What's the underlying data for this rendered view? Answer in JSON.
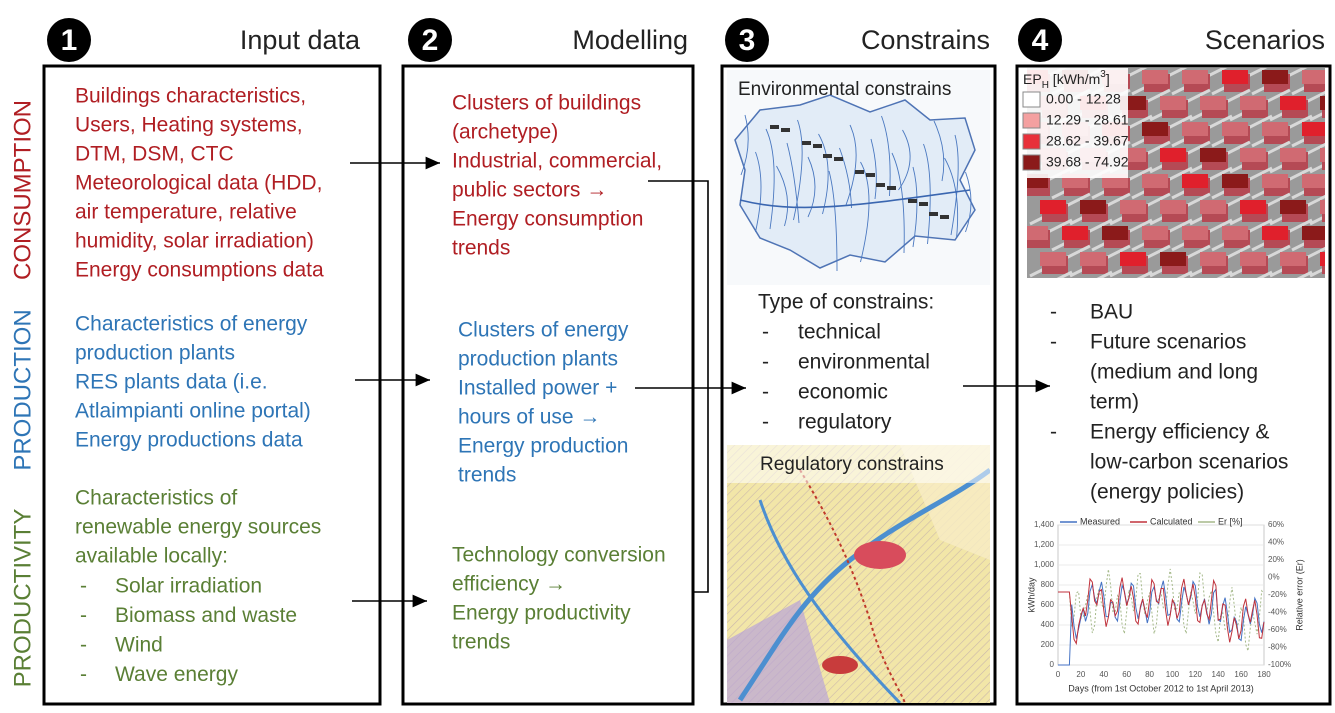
{
  "row_labels": [
    "CONSUMPTION",
    "PRODUCTION",
    "PRODUCTIVITY"
  ],
  "columns": [
    {
      "number": "1",
      "title": "Input data",
      "consumption": [
        "Buildings characteristics,",
        "Users, Heating systems,",
        "DTM, DSM, CTC",
        "Meteorological data (HDD,",
        "air temperature, relative",
        "humidity, solar irradiation)",
        "Energy consumptions data"
      ],
      "production": [
        "Characteristics of energy",
        "production plants",
        "RES plants data (i.e.",
        "Atlaimpianti online portal)",
        "Energy productions data"
      ],
      "productivity": [
        "Characteristics of",
        "renewable energy sources",
        "available locally:"
      ],
      "bullet": "-",
      "sources": [
        "Solar irradiation",
        "Biomass and waste",
        "Wind",
        "Wave energy"
      ]
    },
    {
      "number": "2",
      "title": "Modelling",
      "consumption": [
        "Clusters of buildings",
        "(archetype)",
        "Industrial, commercial,",
        "public sectors →",
        "Energy consumption",
        "trends"
      ],
      "production": [
        "Clusters of energy",
        "production plants",
        "Installed power +",
        "hours of use →",
        "Energy production",
        "trends"
      ],
      "productivity": [
        "Technology conversion",
        "efficiency →",
        "Energy productivity",
        "trends"
      ]
    },
    {
      "number": "3",
      "title": "Constrains",
      "environmental_map_title": "Environmental constrains",
      "intro": "Type of constrains:",
      "bullet": "-",
      "types": [
        "technical",
        "environmental",
        "economic",
        "regulatory"
      ],
      "regulatory_map_title": "Regulatory constrains"
    },
    {
      "number": "4",
      "title": "Scenarios",
      "legend": {
        "base": "EP",
        "subscript": "H",
        "unit": " [kWh/m",
        "superscript": "3",
        "close": "]",
        "ranges": [
          "0.00 - 12.28",
          "12.29 - 28.61",
          "28.62 - 39.67",
          "39.68 - 74.92"
        ]
      },
      "bullet": "-",
      "scenarios": [
        [
          "BAU"
        ],
        [
          "Future scenarios",
          "(medium and long",
          "term)"
        ],
        [
          "Energy efficiency &",
          "low-carbon scenarios",
          "(energy policies)"
        ]
      ],
      "plot": {
        "legend": [
          "Measured",
          "Calculated",
          "Er [%]"
        ],
        "left_ticks": [
          "0",
          "200",
          "400",
          "600",
          "800",
          "1,000",
          "1,200",
          "1,400"
        ],
        "right_ticks": [
          "-100%",
          "-80%",
          "-60%",
          "-40%",
          "-20%",
          "0%",
          "20%",
          "40%",
          "60%"
        ],
        "x_ticks": [
          "0",
          "20",
          "40",
          "60",
          "80",
          "100",
          "120",
          "140",
          "160",
          "180"
        ],
        "y_label": "kWh/day",
        "y2_label": "Relative error (Er)",
        "x_label": "Days (from 1st October 2012 to 1st April 2013)"
      }
    }
  ]
}
